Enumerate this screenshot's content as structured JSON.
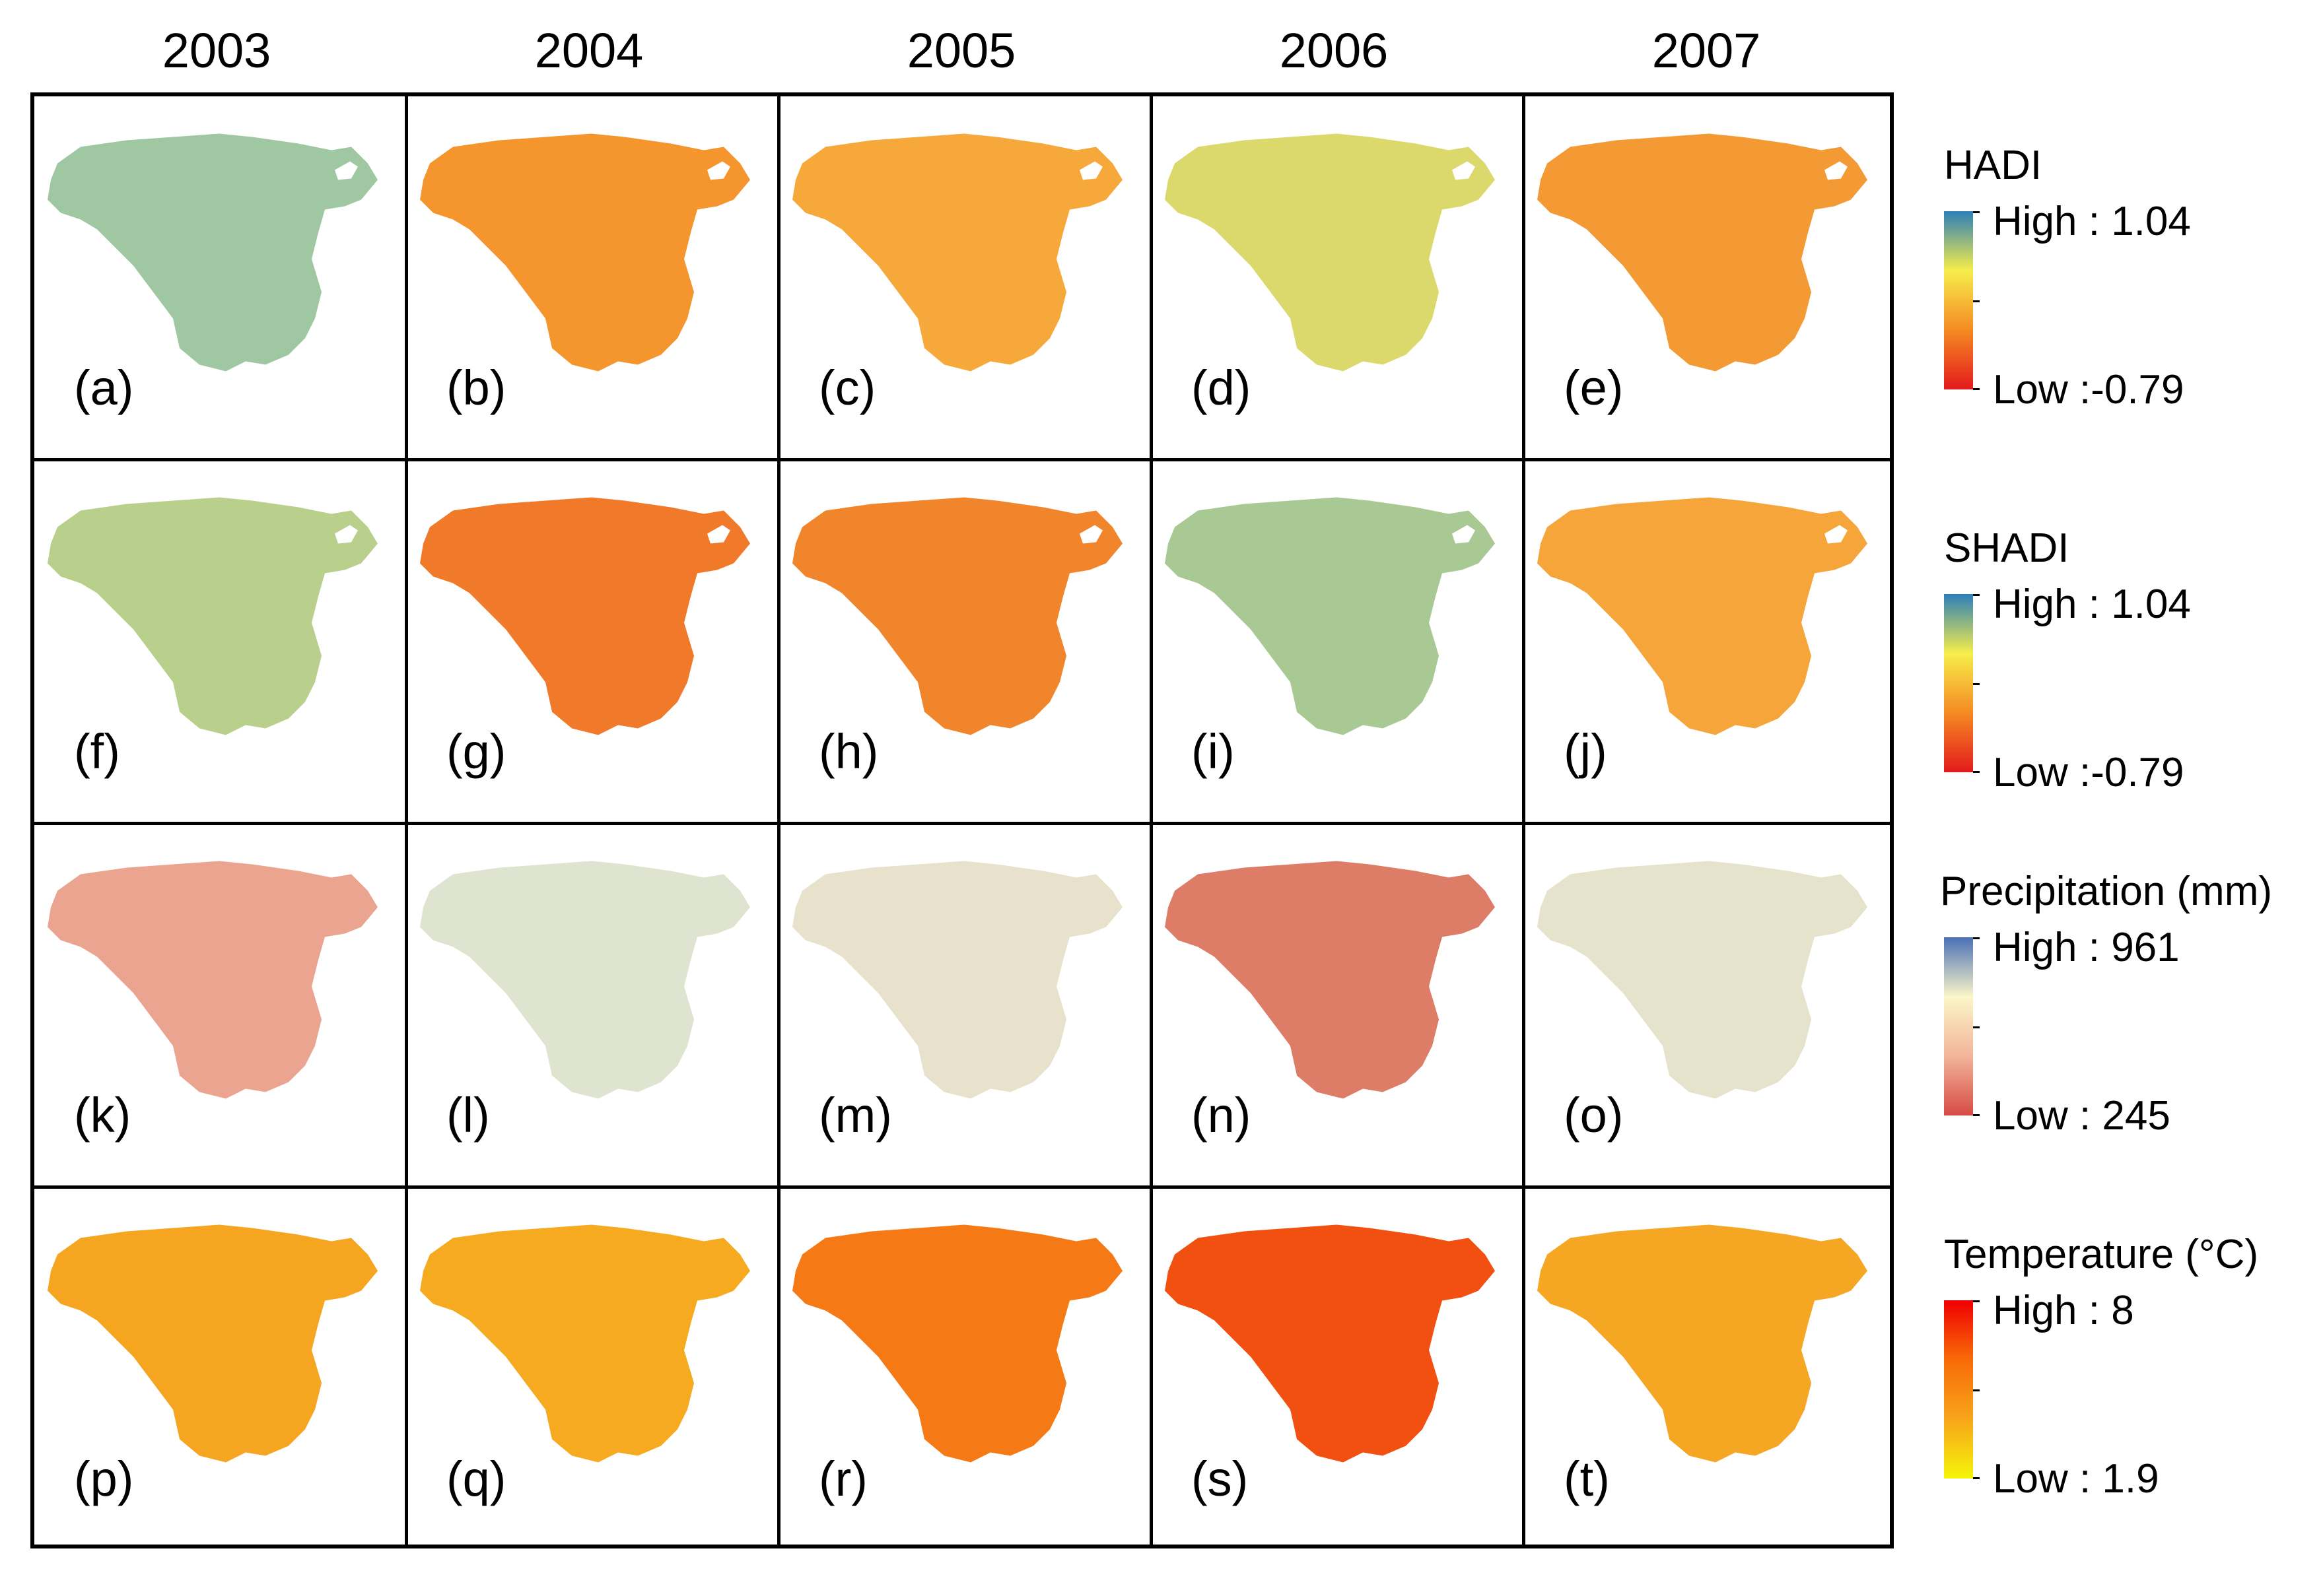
{
  "years": [
    "2003",
    "2004",
    "2005",
    "2006",
    "2007"
  ],
  "panel_labels": [
    [
      "(a)",
      "(b)",
      "(c)",
      "(d)",
      "(e)"
    ],
    [
      "(f)",
      "(g)",
      "(h)",
      "(i)",
      "(j)"
    ],
    [
      "(k)",
      "(l)",
      "(m)",
      "(n)",
      "(o)"
    ],
    [
      "(p)",
      "(q)",
      "(r)",
      "(s)",
      "(t)"
    ]
  ],
  "legends": [
    {
      "title": "HADI",
      "high": "High : 1.04",
      "low": "Low :-0.79",
      "colors": [
        "#2c7fb8",
        "#f6ee4b",
        "#f58a22",
        "#e31a1c"
      ]
    },
    {
      "title": "SHADI",
      "high": "High : 1.04",
      "low": "Low :-0.79",
      "colors": [
        "#2c7fb8",
        "#f6ee4b",
        "#f58a22",
        "#e31a1c"
      ]
    },
    {
      "title": "Precipitation (mm)",
      "high": "High : 961",
      "low": "Low : 245",
      "colors": [
        "#4a6fb5",
        "#fbf6c8",
        "#f2b59a",
        "#d64a43"
      ]
    },
    {
      "title": "Temperature (°C)",
      "high": "High : 8",
      "low": "Low : 1.9",
      "colors": [
        "#f00000",
        "#f86b08",
        "#f8a51a",
        "#f5f50a"
      ]
    }
  ],
  "map_fills": [
    [
      "#9ec7a2",
      "#f4952e",
      "#f6a93a",
      "#dbd96b",
      "#f39a35"
    ],
    [
      "#b8d08c",
      "#f07a2a",
      "#f1852c",
      "#a8c894",
      "#f5a53a"
    ],
    [
      "#eaa48f",
      "#dfe4d0",
      "#e8e2cc",
      "#de7d67",
      "#e6e3cc"
    ],
    [
      "#f5a520",
      "#f6aa20",
      "#f57a16",
      "#f25010",
      "#f5a622"
    ]
  ]
}
